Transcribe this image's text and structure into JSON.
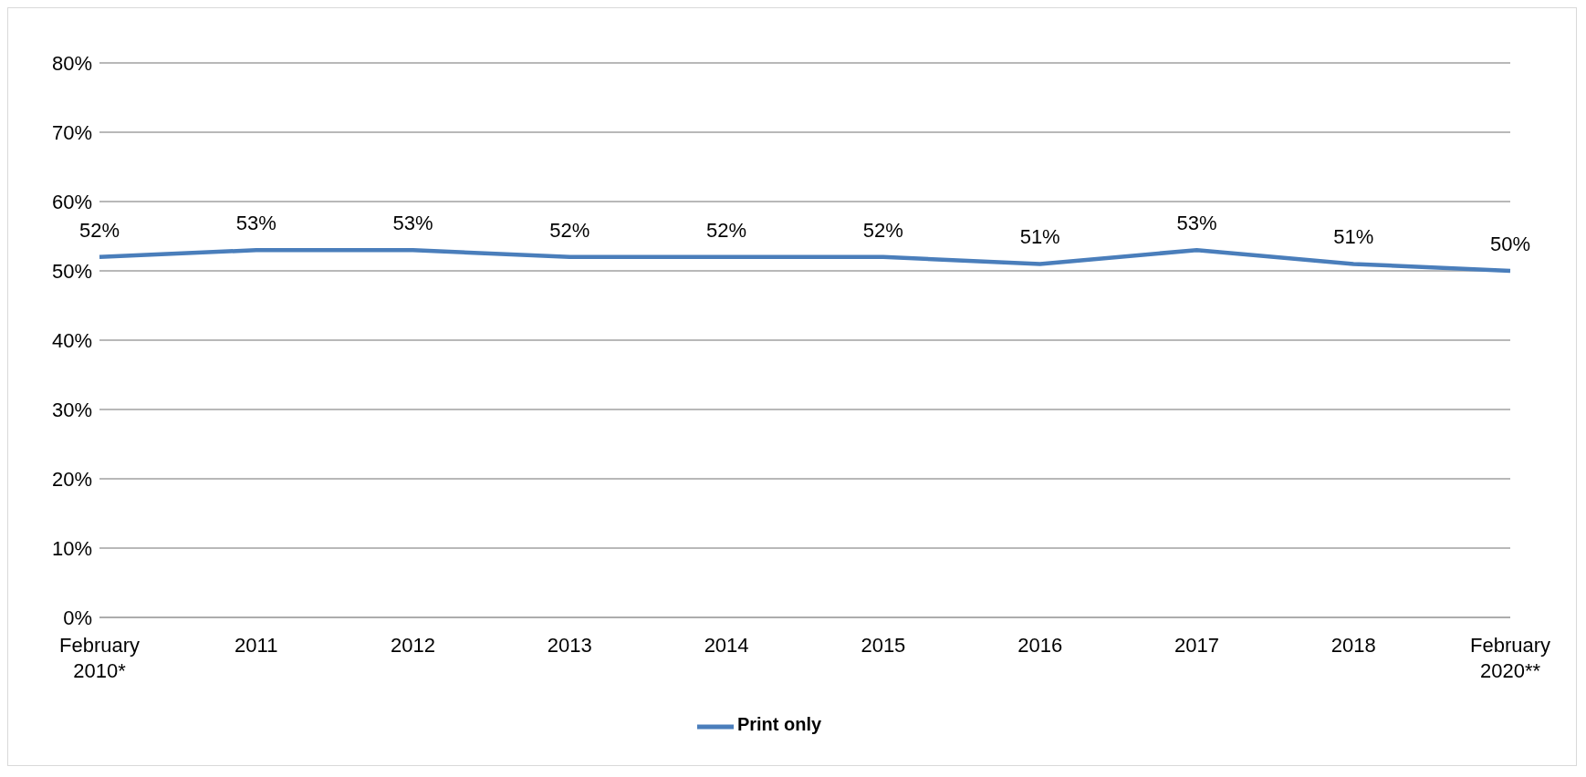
{
  "chart_data": {
    "type": "line",
    "categories": [
      "February 2010*",
      "2011",
      "2012",
      "2013",
      "2014",
      "2015",
      "2016",
      "2017",
      "2018",
      "February 2020**"
    ],
    "series": [
      {
        "name": "Print only",
        "color": "#4a7ebb",
        "values": [
          52,
          53,
          53,
          52,
          52,
          52,
          51,
          53,
          51,
          50
        ],
        "value_labels": [
          "52%",
          "53%",
          "53%",
          "52%",
          "52%",
          "52%",
          "51%",
          "53%",
          "51%",
          "50%"
        ]
      }
    ],
    "ylim": [
      0,
      80
    ],
    "yticks": [
      {
        "value": 0,
        "label": "0%"
      },
      {
        "value": 10,
        "label": "10%"
      },
      {
        "value": 20,
        "label": "20%"
      },
      {
        "value": 30,
        "label": "30%"
      },
      {
        "value": 40,
        "label": "40%"
      },
      {
        "value": 50,
        "label": "50%"
      },
      {
        "value": 60,
        "label": "60%"
      },
      {
        "value": 70,
        "label": "70%"
      },
      {
        "value": 80,
        "label": "80%"
      }
    ],
    "grid": "y",
    "legend": "bottom",
    "marker": "none",
    "line_style": "solid"
  }
}
